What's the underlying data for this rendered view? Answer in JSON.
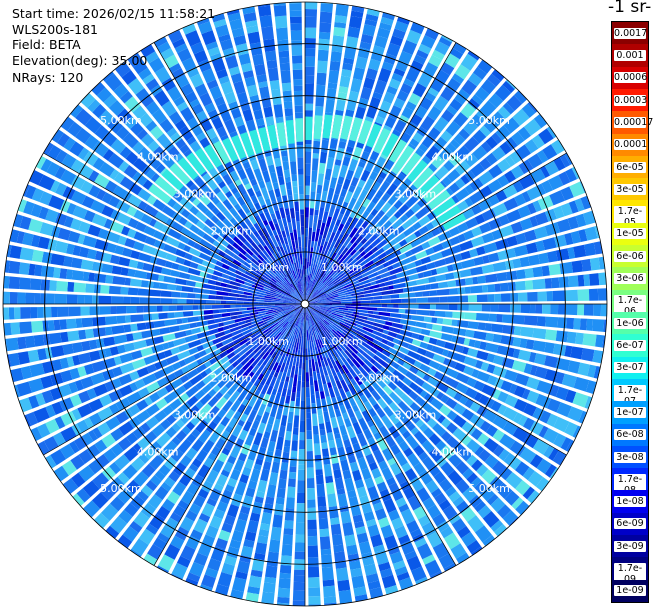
{
  "header": {
    "start_time": "Start time: 2026/02/15 11:58:21",
    "instrument": "WLS200s-181",
    "field": "Field: BETA",
    "elevation": "Elevation(deg): 35.00",
    "nrays": "NRays: 120"
  },
  "colorbar": {
    "title": "-1 sr-",
    "labels": [
      "0.0017",
      "0.001",
      "0.0006",
      "0.0003",
      "0.00017",
      "0.0001",
      "6e-05",
      "3e-05",
      "1.7e-05",
      "1e-05",
      "6e-06",
      "3e-06",
      "1.7e-06",
      "1e-06",
      "6e-07",
      "3e-07",
      "1.7e-07",
      "1e-07",
      "6e-08",
      "3e-08",
      "1.7e-08",
      "1e-08",
      "6e-09",
      "3e-09",
      "1.7e-09",
      "1e-09"
    ],
    "colors": [
      "#8b0000",
      "#b00000",
      "#d80000",
      "#ff1a00",
      "#ff5a00",
      "#ff8a00",
      "#ffae00",
      "#ffc800",
      "#ffe600",
      "#eaff10",
      "#c8ff30",
      "#a0ff58",
      "#7aff82",
      "#55ffaa",
      "#30ffd2",
      "#10f0f0",
      "#00c8ff",
      "#00a0ff",
      "#0078ff",
      "#0050ff",
      "#0028ff",
      "#0000f0",
      "#0000c8",
      "#0000a0",
      "#000080",
      "#000060"
    ]
  },
  "chart_data": {
    "type": "heatmap",
    "projection": "polar (PPI scan)",
    "field": "BETA",
    "elevation_deg": 35.0,
    "n_rays": 120,
    "range_rings_km": [
      1.0,
      2.0,
      3.0,
      4.0,
      5.0
    ],
    "ring_labels": [
      "1.00km",
      "2.00km",
      "3.00km",
      "4.00km",
      "5.00km"
    ],
    "max_range_km": 5.8,
    "value_range": [
      1e-09,
      0.0017
    ],
    "background_level": "3e-08",
    "near_range_level": "6e-09",
    "high_band": {
      "range_km": [
        3.15,
        3.6
      ],
      "azimuth_deg": [
        -55,
        60
      ],
      "level": "1.7e-07"
    },
    "azimuth_lines_deg": [
      0,
      30,
      60,
      90,
      120,
      150,
      180,
      210,
      240,
      270,
      300,
      330
    ],
    "grid": true
  }
}
